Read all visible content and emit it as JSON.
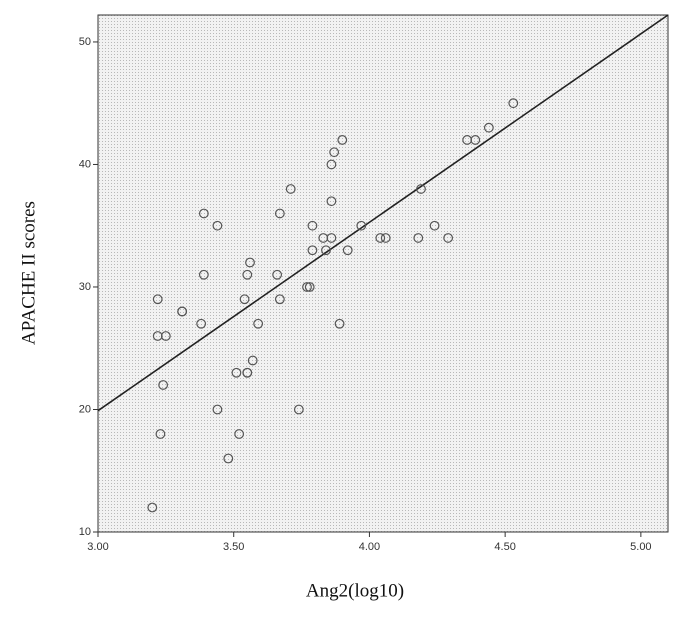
{
  "chart_data": {
    "type": "scatter",
    "x_label": "Ang2(log10)",
    "y_label": "APACHE II scores",
    "xlim": [
      3.0,
      5.1
    ],
    "ylim": [
      10,
      52.2
    ],
    "xticks": [
      {
        "value": 3,
        "label": "3.00"
      },
      {
        "value": 3.5,
        "label": "3.50"
      },
      {
        "value": 4,
        "label": "4.00"
      },
      {
        "value": 4.5,
        "label": "4.50"
      },
      {
        "value": 5,
        "label": "5.00"
      }
    ],
    "yticks": [
      10,
      20,
      30,
      40,
      50
    ],
    "color": "#555555",
    "series": [
      {
        "x": [
          3.2,
          3.22,
          3.22,
          3.25,
          3.24,
          3.23,
          3.31,
          3.31,
          3.38,
          3.39,
          3.39,
          3.44,
          3.44,
          3.48,
          3.51,
          3.52,
          3.54,
          3.55,
          3.55,
          3.55,
          3.56,
          3.57,
          3.59,
          3.66,
          3.67,
          3.67,
          3.71,
          3.74,
          3.77,
          3.78,
          3.79,
          3.79,
          3.83,
          3.84,
          3.86,
          3.86,
          3.86,
          3.87,
          3.89,
          3.9,
          3.92,
          3.97,
          4.04,
          4.06,
          4.18,
          4.19,
          4.24,
          4.29,
          4.36,
          4.39,
          4.44,
          4.53
        ],
        "values": [
          12,
          29,
          26,
          26,
          22,
          18,
          28,
          28,
          27,
          36,
          31,
          20,
          35,
          16,
          23,
          18,
          29,
          23,
          23,
          31,
          32,
          24,
          27,
          31,
          29,
          36,
          38,
          20,
          30,
          30,
          33,
          35,
          34,
          33,
          34,
          37,
          40,
          41,
          27,
          42,
          33,
          35,
          34,
          34,
          34,
          38,
          35,
          34,
          42,
          42,
          43,
          45
        ]
      }
    ],
    "fit_line": {
      "x": [
        3.0,
        5.1
      ],
      "y": [
        19.9,
        52.2
      ]
    }
  }
}
